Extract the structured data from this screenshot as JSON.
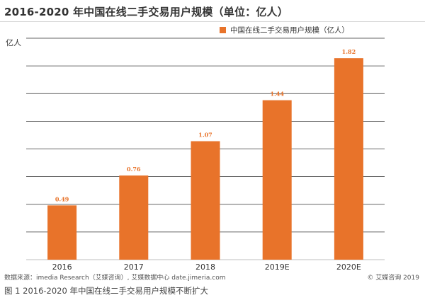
{
  "header": {
    "title": "2016-2020 年中国在线二手交易用户规模（单位：亿人）"
  },
  "legend": {
    "label": "中国在线二手交易用户规模（亿人）"
  },
  "footer": {
    "source": "数据来源：imedia Research（艾媒咨询）, 艾媒数据中心 date.jimeria.com",
    "copyright": "© 艾媒咨询 2019",
    "caption": "图 1  2016-2020 年中国在线二手交易用户规模不断扩大"
  },
  "colors": {
    "bar": "#e8732a",
    "grid": "#333333",
    "axis": "#bfbfbf"
  },
  "chart_data": {
    "type": "bar",
    "title": "2016-2020 年中国在线二手交易用户规模（单位：亿人）",
    "ylabel": "亿人",
    "xlabel": "",
    "categories": [
      "2016",
      "2017",
      "2018",
      "2019E",
      "2020E"
    ],
    "series": [
      {
        "name": "中国在线二手交易用户规模（亿人）",
        "values": [
          0.49,
          0.76,
          1.07,
          1.44,
          1.82
        ]
      }
    ],
    "ylim": [
      0,
      2.0
    ],
    "gridlines": 8,
    "grid": true,
    "legend_position": "top-right"
  }
}
